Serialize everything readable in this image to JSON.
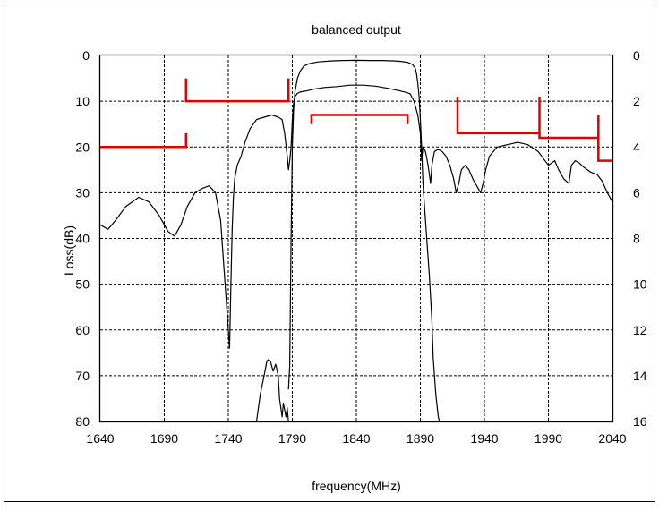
{
  "chart_data": {
    "type": "line",
    "title": "balanced output",
    "xlabel": "frequency(MHz)",
    "ylabel": "Loss(dB)",
    "xlim": [
      1640,
      2040
    ],
    "ylim": [
      0,
      80
    ],
    "y2lim": [
      0,
      16
    ],
    "y_inverted": true,
    "grid": true,
    "x_ticks": [
      "1640",
      "1690",
      "1740",
      "1790",
      "1840",
      "1890",
      "1940",
      "1990",
      "2040"
    ],
    "y_ticks": [
      "0",
      "10",
      "20",
      "30",
      "40",
      "50",
      "60",
      "70",
      "80"
    ],
    "y2_ticks": [
      "0",
      "2",
      "4",
      "6",
      "8",
      "10",
      "12",
      "14",
      "16"
    ],
    "colors": {
      "curve": "#000000",
      "spec": "#e00000",
      "grid": "#000000"
    },
    "series": [
      {
        "axis": "left",
        "x": [
          1640,
          1646,
          1652,
          1660,
          1670,
          1678,
          1686,
          1693,
          1698,
          1703,
          1708,
          1714,
          1720,
          1725,
          1730,
          1734,
          1737,
          1740,
          1741,
          1742,
          1743,
          1744,
          1745,
          1747,
          1750,
          1753,
          1757,
          1762,
          1768,
          1774,
          1779,
          1782,
          1784,
          1786,
          1787,
          1788,
          1789,
          1790,
          1791,
          1792,
          1794,
          1796,
          1798,
          1800,
          1803,
          1808,
          1815,
          1825,
          1835,
          1845,
          1855,
          1865,
          1872,
          1878,
          1882,
          1885,
          1888,
          1890,
          1891,
          1892,
          1894,
          1896,
          1898,
          1899,
          1901,
          1904,
          1907,
          1910,
          1913,
          1916,
          1918,
          1920,
          1922,
          1925,
          1928,
          1931,
          1935,
          1937,
          1939,
          1941,
          1944,
          1950,
          1958,
          1966,
          1974,
          1982,
          1990,
          1995,
          1998,
          2002,
          2006,
          2008,
          2011,
          2014,
          2018,
          2023,
          2028,
          2032,
          2036,
          2040
        ],
        "values": [
          37,
          38,
          36,
          33,
          31,
          32,
          35,
          38.5,
          39.5,
          37,
          33,
          30,
          29,
          28.5,
          30,
          36,
          48,
          60,
          64,
          50,
          38,
          31,
          27,
          24,
          22,
          19,
          16,
          14,
          13.5,
          13,
          13.5,
          14,
          17,
          22,
          25,
          23,
          20,
          14,
          10.5,
          9,
          8.3,
          8,
          7.9,
          7.8,
          7.6,
          7.3,
          7,
          6.8,
          6.5,
          6.5,
          6.7,
          7.2,
          7.6,
          8,
          8.4,
          10,
          13,
          17,
          23,
          20,
          21,
          24,
          28,
          24,
          21,
          20.5,
          21,
          22,
          24,
          27,
          30,
          28,
          25,
          24,
          25,
          27,
          29,
          30,
          28,
          25,
          22,
          20,
          19.5,
          19,
          19.5,
          21,
          24,
          23,
          25,
          27,
          28,
          24,
          23,
          23.5,
          24.5,
          25.5,
          26,
          27.5,
          30,
          32
        ]
      },
      {
        "axis": "left",
        "x": [
          1787,
          1788,
          1789,
          1790,
          1791,
          1792,
          1794,
          1796,
          1799,
          1803,
          1810,
          1820,
          1830,
          1840,
          1850,
          1860,
          1870,
          1875,
          1880,
          1884,
          1886,
          1887,
          1888,
          1889,
          1890,
          1891,
          1892
        ],
        "values": [
          73,
          68,
          40,
          20,
          12,
          8,
          5,
          3.5,
          2.3,
          1.8,
          1.4,
          1.2,
          1.1,
          1.05,
          1.1,
          1.1,
          1.2,
          1.3,
          1.5,
          2,
          2.8,
          4,
          6,
          9,
          14,
          20,
          28
        ]
      },
      {
        "axis": "left",
        "x": [
          1892,
          1893,
          1895,
          1897,
          1899,
          1900,
          1902,
          1904,
          1905
        ],
        "values": [
          28,
          32,
          40,
          48,
          58,
          66,
          74,
          79,
          80
        ]
      },
      {
        "axis": "left",
        "x": [
          1762,
          1765,
          1768,
          1770,
          1771,
          1773,
          1775,
          1777,
          1779,
          1780,
          1782,
          1783,
          1785,
          1786,
          1787
        ],
        "values": [
          80,
          74,
          70,
          67,
          66.5,
          67,
          69,
          67.5,
          70,
          75,
          79,
          76,
          79,
          77,
          80
        ]
      }
    ],
    "spec_lines": [
      {
        "x": [
          1640,
          1707,
          1707
        ],
        "y2": [
          4,
          4,
          3.4
        ]
      },
      {
        "x": [
          1707,
          1707,
          1787,
          1787
        ],
        "y2": [
          1,
          2,
          2,
          1
        ]
      },
      {
        "x": [
          1805,
          1805,
          1880,
          1880
        ],
        "y2": [
          3,
          2.6,
          2.6,
          3
        ]
      },
      {
        "x": [
          1919,
          1919,
          1983,
          1983
        ],
        "y2": [
          1.8,
          3.4,
          3.4,
          1.8
        ]
      },
      {
        "x": [
          1983,
          1983,
          2029,
          2029
        ],
        "y2": [
          3.4,
          3.6,
          3.6,
          3.4
        ]
      },
      {
        "x": [
          2029,
          2029,
          2040
        ],
        "y2": [
          2.6,
          4.6,
          4.6
        ]
      }
    ]
  }
}
